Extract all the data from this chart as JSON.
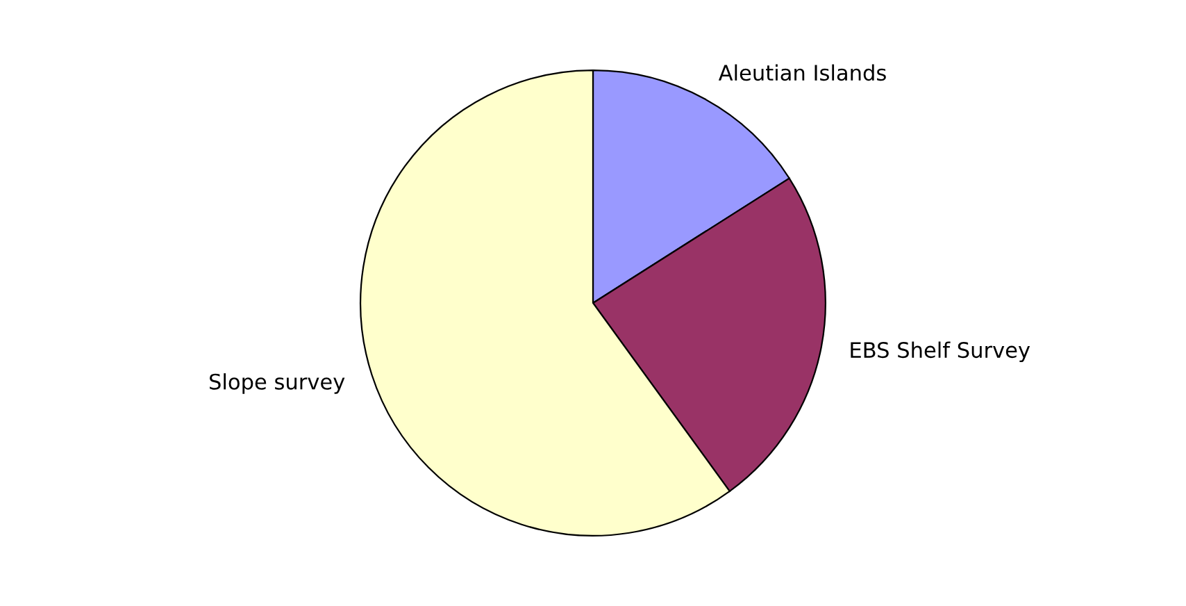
{
  "chart_data": {
    "type": "pie",
    "categories": [
      "Aleutian Islands",
      "EBS Shelf Survey",
      "Slope survey"
    ],
    "values": [
      16,
      24,
      60
    ],
    "colors": [
      "#9999ff",
      "#993366",
      "#ffffcc"
    ]
  }
}
